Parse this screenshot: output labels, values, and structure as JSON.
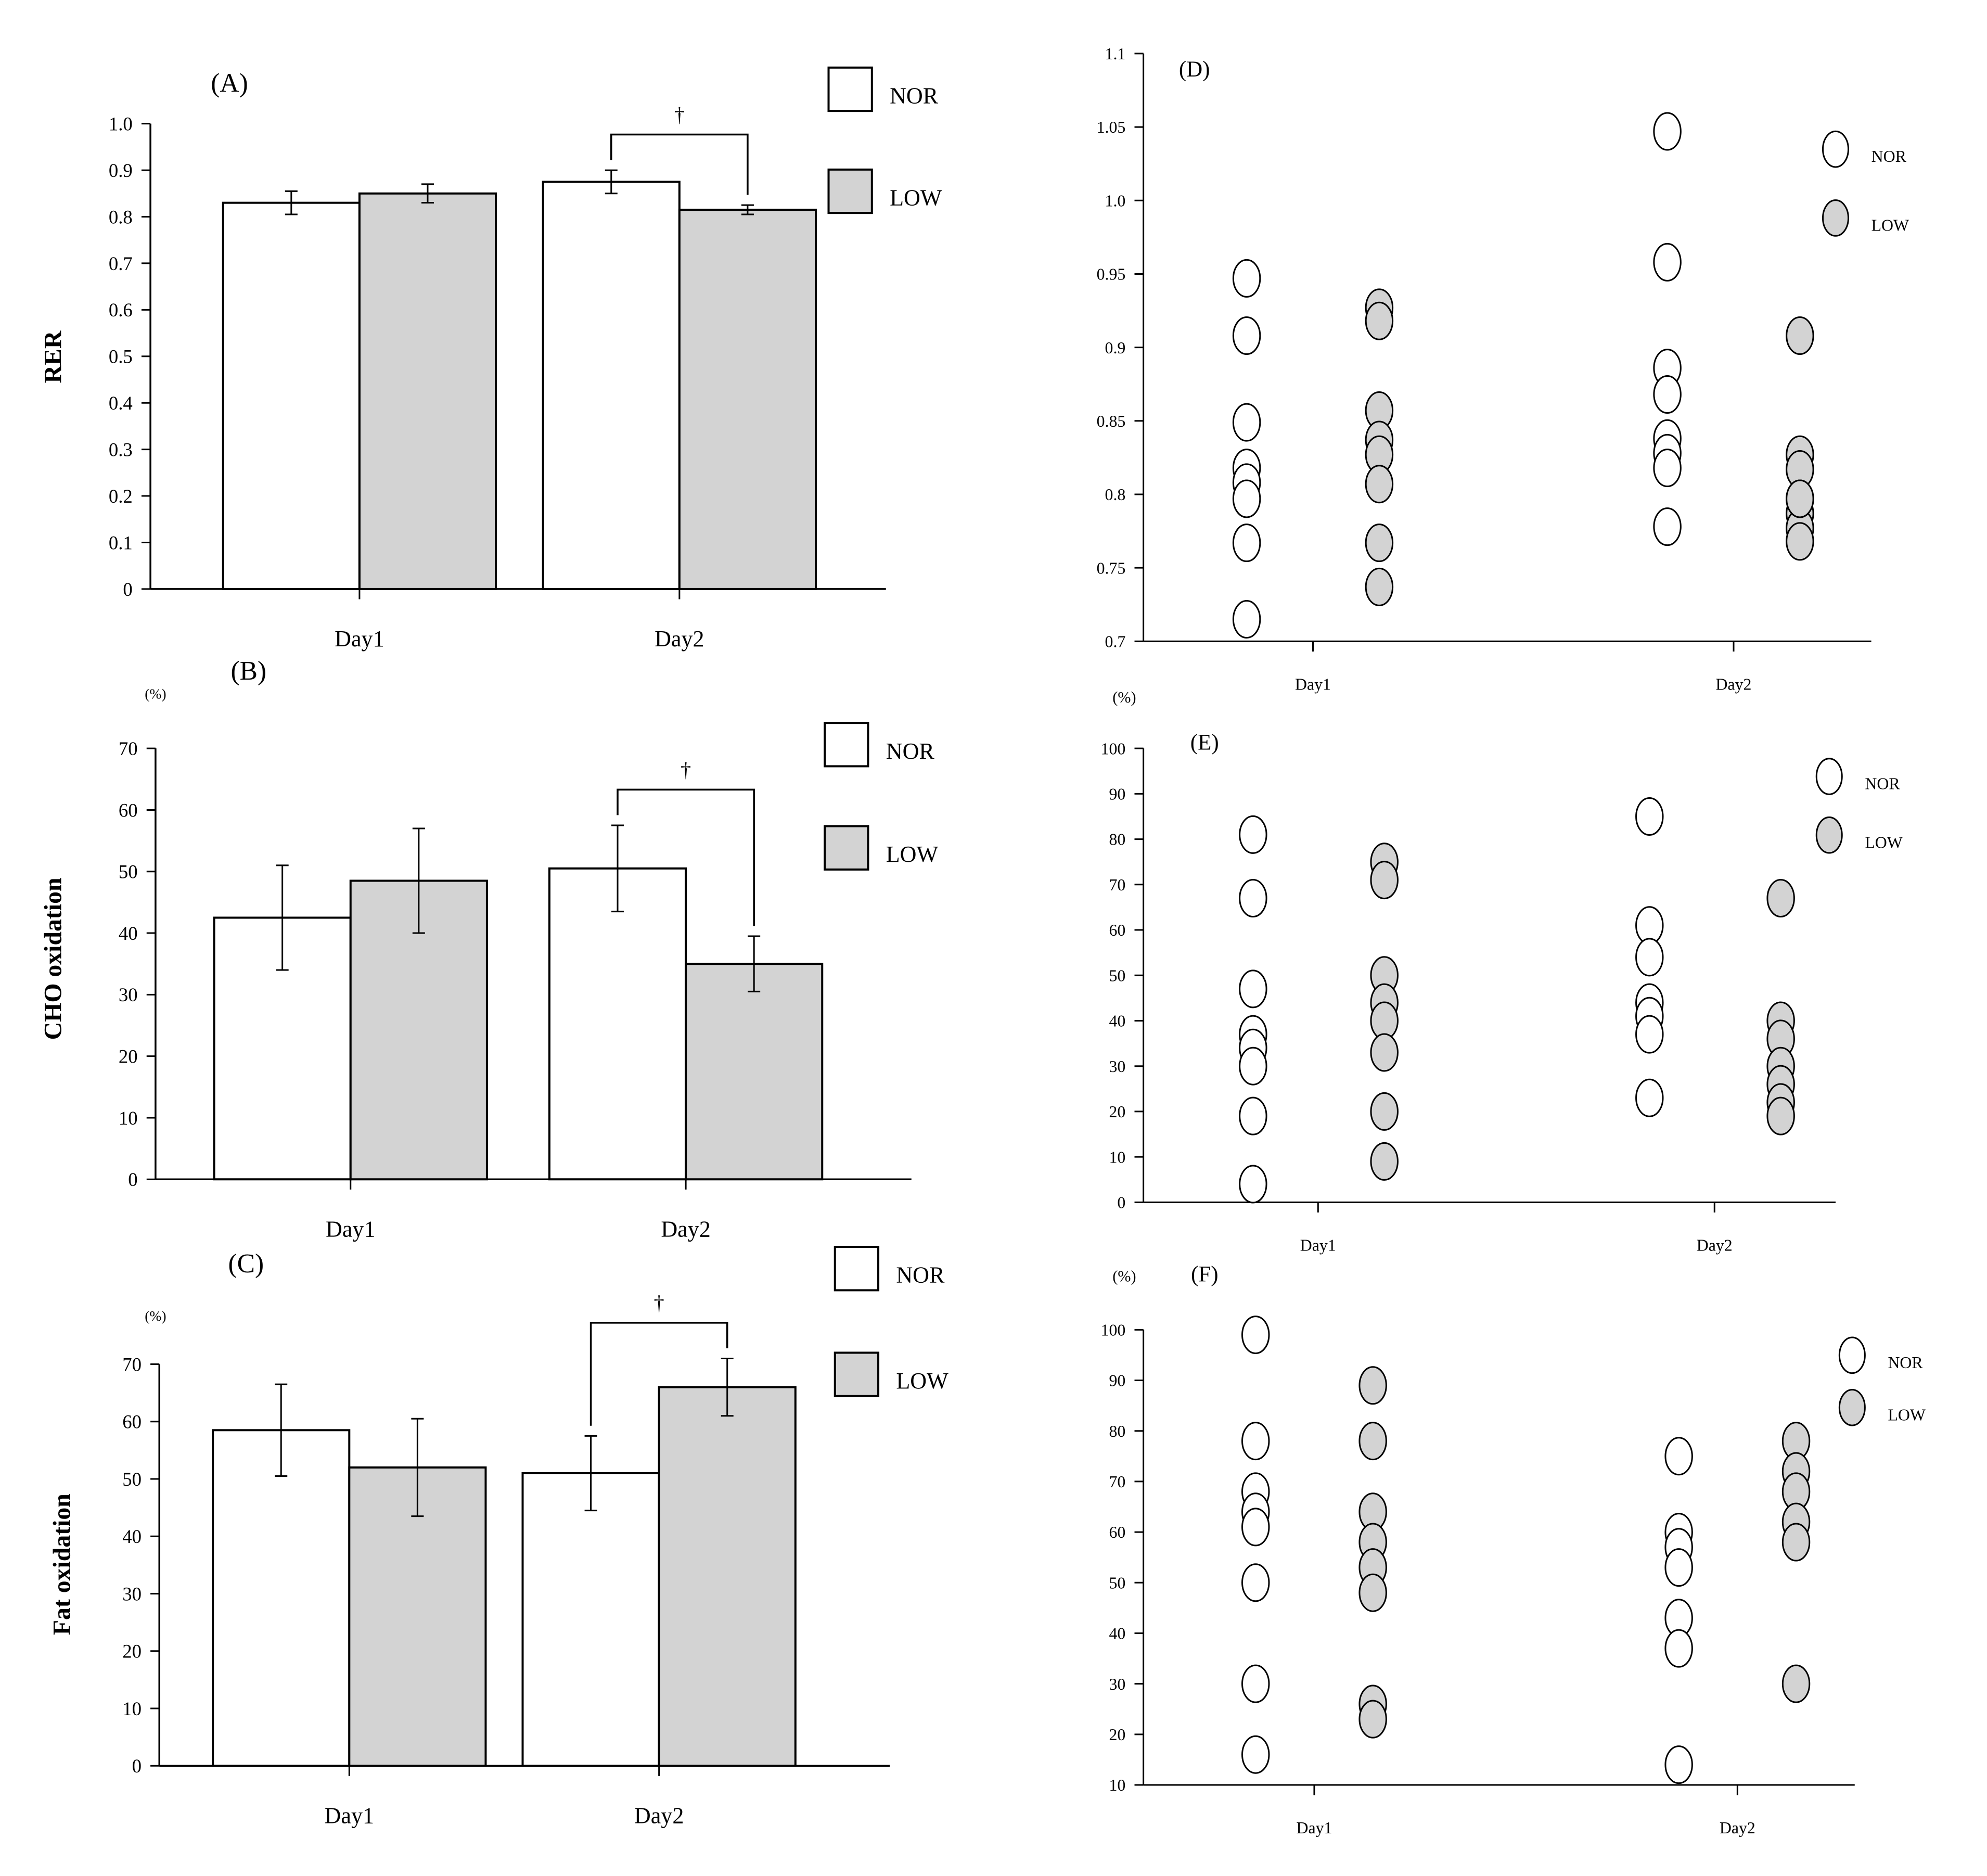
{
  "colors": {
    "nor_fill": "#ffffff",
    "low_fill": "#d3d3d3",
    "ink": "#000000"
  },
  "chart_data": [
    {
      "id": "A",
      "type": "bar",
      "panel_label": "(A)",
      "ylabel": "RER",
      "unit": "",
      "categories": [
        "Day1",
        "Day2"
      ],
      "ylim": [
        0,
        1.0
      ],
      "yticks": [
        "0",
        "0.1",
        "0.2",
        "0.3",
        "0.4",
        "0.5",
        "0.6",
        "0.7",
        "0.8",
        "0.9",
        "1.0"
      ],
      "series": [
        {
          "name": "NOR",
          "values": [
            0.83,
            0.875
          ],
          "errors": [
            0.025,
            0.025
          ]
        },
        {
          "name": "LOW",
          "values": [
            0.85,
            0.815
          ],
          "errors": [
            0.02,
            0.01
          ]
        }
      ],
      "significance": {
        "category": "Day2",
        "symbol": "†"
      },
      "legend": [
        "NOR",
        "LOW"
      ]
    },
    {
      "id": "B",
      "type": "bar",
      "panel_label": "(B)",
      "ylabel": "CHO oxidation",
      "unit": "(%)",
      "categories": [
        "Day1",
        "Day2"
      ],
      "ylim": [
        0,
        70
      ],
      "yticks": [
        "0",
        "10",
        "20",
        "30",
        "40",
        "50",
        "60",
        "70"
      ],
      "series": [
        {
          "name": "NOR",
          "values": [
            42.5,
            50.5
          ],
          "errors": [
            8.5,
            7
          ]
        },
        {
          "name": "LOW",
          "values": [
            48.5,
            35
          ],
          "errors": [
            8.5,
            4.5
          ]
        }
      ],
      "significance": {
        "category": "Day2",
        "symbol": "†"
      },
      "legend": [
        "NOR",
        "LOW"
      ]
    },
    {
      "id": "C",
      "type": "bar",
      "panel_label": "(C)",
      "ylabel": "Fat oxidation",
      "unit": "(%)",
      "categories": [
        "Day1",
        "Day2"
      ],
      "ylim": [
        0,
        70
      ],
      "yticks": [
        "0",
        "10",
        "20",
        "30",
        "40",
        "50",
        "60",
        "70"
      ],
      "series": [
        {
          "name": "NOR",
          "values": [
            58.5,
            51
          ],
          "errors": [
            8,
            6.5
          ]
        },
        {
          "name": "LOW",
          "values": [
            52,
            66
          ],
          "errors": [
            8.5,
            5
          ]
        }
      ],
      "significance": {
        "category": "Day2",
        "symbol": "†"
      },
      "legend": [
        "NOR",
        "LOW"
      ]
    },
    {
      "id": "D",
      "type": "scatter",
      "panel_label": "(D)",
      "unit": "",
      "categories": [
        "Day1",
        "Day2"
      ],
      "ylim": [
        0.7,
        1.1
      ],
      "yticks": [
        "0.7",
        "0.75",
        "0.8",
        "0.85",
        "0.9",
        "0.95",
        "1.0",
        "1.05",
        "1.1"
      ],
      "series": [
        {
          "name": "NOR",
          "points": [
            [
              0.947,
              0.908,
              0.849,
              0.818,
              0.808,
              0.797,
              0.767,
              0.715
            ],
            [
              1.047,
              0.958,
              0.886,
              0.868,
              0.838,
              0.828,
              0.818,
              0.778
            ]
          ]
        },
        {
          "name": "LOW",
          "points": [
            [
              0.927,
              0.918,
              0.857,
              0.837,
              0.827,
              0.807,
              0.767,
              0.737
            ],
            [
              0.908,
              0.827,
              0.817,
              0.797,
              0.787,
              0.777,
              0.768,
              0.797
            ]
          ]
        }
      ],
      "legend": [
        "NOR",
        "LOW"
      ]
    },
    {
      "id": "E",
      "type": "scatter",
      "panel_label": "(E)",
      "unit": "(%)",
      "categories": [
        "Day1",
        "Day2"
      ],
      "ylim": [
        0,
        100
      ],
      "yticks": [
        "0",
        "10",
        "20",
        "30",
        "40",
        "50",
        "60",
        "70",
        "80",
        "90",
        "100"
      ],
      "series": [
        {
          "name": "NOR",
          "points": [
            [
              81,
              67,
              47,
              37,
              34,
              30,
              19,
              4
            ],
            [
              85,
              61,
              54,
              44,
              41,
              37,
              23
            ]
          ]
        },
        {
          "name": "LOW",
          "points": [
            [
              75,
              71,
              50,
              44,
              40,
              33,
              20,
              9
            ],
            [
              67,
              40,
              36,
              30,
              26,
              22,
              19
            ]
          ]
        }
      ],
      "legend": [
        "NOR",
        "LOW"
      ]
    },
    {
      "id": "F",
      "type": "scatter",
      "panel_label": "(F)",
      "unit": "(%)",
      "categories": [
        "Day1",
        "Day2"
      ],
      "ylim": [
        10,
        100
      ],
      "yticks": [
        "10",
        "20",
        "30",
        "40",
        "50",
        "60",
        "70",
        "80",
        "90",
        "100"
      ],
      "series": [
        {
          "name": "NOR",
          "points": [
            [
              99,
              78,
              68,
              64,
              61,
              50,
              30,
              16
            ],
            [
              75,
              60,
              57,
              53,
              43,
              37,
              14
            ]
          ]
        },
        {
          "name": "LOW",
          "points": [
            [
              89,
              78,
              64,
              58,
              53,
              48,
              26,
              23
            ],
            [
              78,
              72,
              68,
              62,
              58,
              30
            ]
          ]
        }
      ],
      "legend": [
        "NOR",
        "LOW"
      ]
    }
  ]
}
